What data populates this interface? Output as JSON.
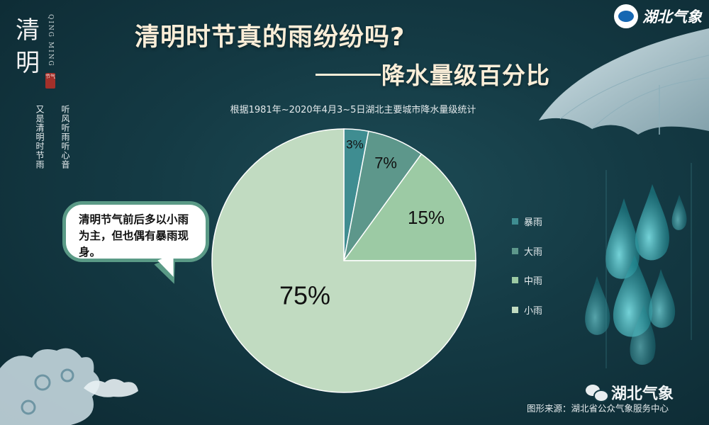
{
  "sidebar": {
    "title_chars": [
      "清",
      "明"
    ],
    "pinyin": "QING MING",
    "seal": "节气",
    "poem_line1": "听风听雨听心音",
    "poem_line2": "又是清明时节雨"
  },
  "header": {
    "title": "清明时节真的雨纷纷吗?",
    "subtitle": "降水量级百分比",
    "source_note": "根据1981年~2020年4月3~5日湖北主要城市降水量级统计"
  },
  "brand": {
    "name": "湖北气象"
  },
  "callout": {
    "text": "清明节气前后多以小雨为主，但也偶有暴雨现身。"
  },
  "chart_data": {
    "type": "pie",
    "categories": [
      "暴雨",
      "大雨",
      "中雨",
      "小雨"
    ],
    "values": [
      3,
      7,
      15,
      75
    ],
    "labels": [
      "3%",
      "7%",
      "15%",
      "75%"
    ],
    "colors": [
      "#3f8d91",
      "#5d978b",
      "#9ccaa4",
      "#c1dbc1"
    ],
    "legend_position": "right"
  },
  "footer": {
    "wechat_name": "湖北气象",
    "source": "图形来源：湖北省公众气象服务中心"
  }
}
